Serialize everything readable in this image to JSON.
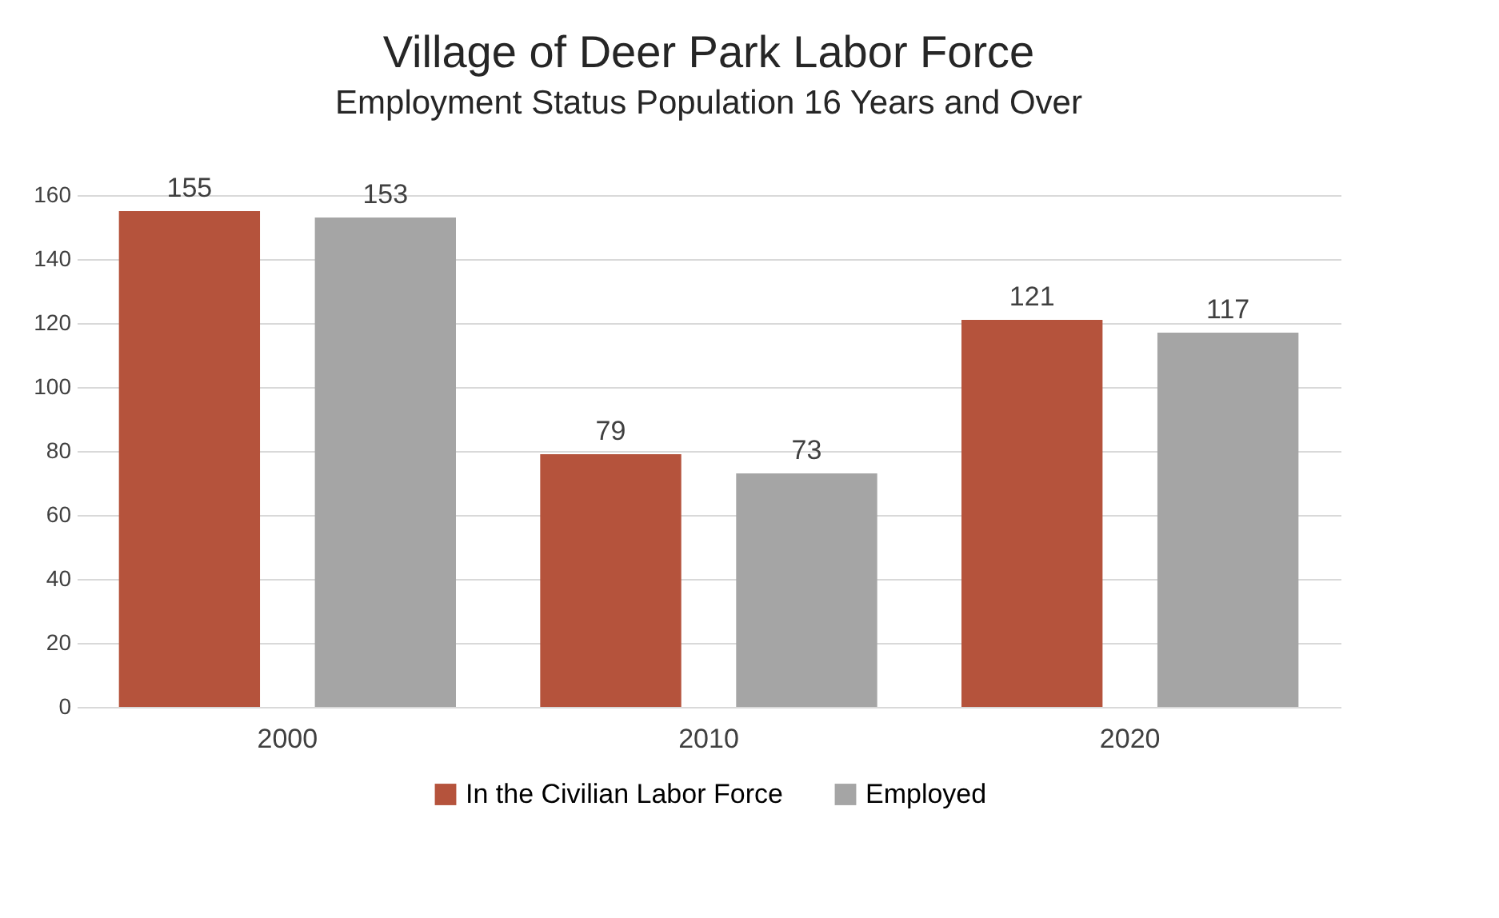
{
  "chart_data": {
    "type": "bar",
    "title": "Village of Deer Park Labor Force",
    "subtitle": "Employment Status Population 16 Years and Over",
    "categories": [
      "2000",
      "2010",
      "2020"
    ],
    "series": [
      {
        "name": "In the Civilian Labor Force",
        "color": "#b5533c",
        "values": [
          155,
          79,
          121
        ]
      },
      {
        "name": "Employed",
        "color": "#a5a5a5",
        "values": [
          153,
          73,
          117
        ]
      }
    ],
    "ylim": [
      0,
      160
    ],
    "yticks": [
      0,
      20,
      40,
      60,
      80,
      100,
      120,
      140,
      160
    ],
    "grid": "y",
    "legend": "bottom",
    "data_labels": true
  }
}
